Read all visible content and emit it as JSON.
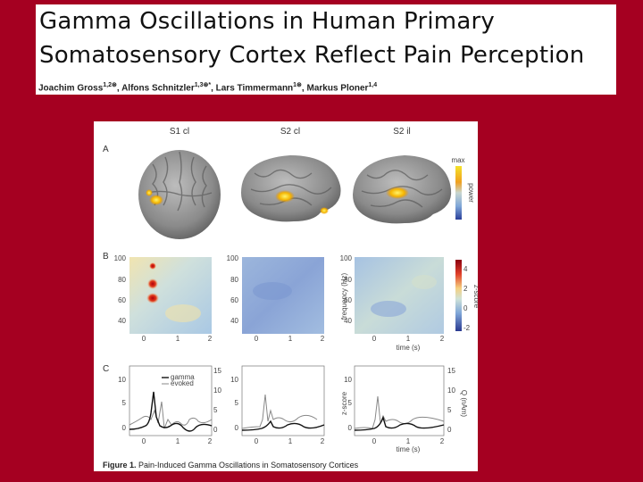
{
  "paper": {
    "title_line1": "Gamma Oscillations in Human Primary",
    "title_line2": "Somatosensory Cortex Reflect Pain Perception",
    "authors": [
      {
        "name": "Joachim Gross",
        "sup": "1,2⊛",
        "sep": ", "
      },
      {
        "name": "Alfons Schnitzler",
        "sup": "1,3⊛*",
        "sep": ", "
      },
      {
        "name": "Lars Timmermann",
        "sup": "1⊛",
        "sep": ", "
      },
      {
        "name": "Markus Ploner",
        "sup": "1,4",
        "sep": ""
      }
    ]
  },
  "figure": {
    "column_titles": [
      "S1 cl",
      "S2 cl",
      "S2 il"
    ],
    "panel_labels": [
      "A",
      "B",
      "C"
    ],
    "caption_label": "Figure 1.",
    "caption_text": " Pain-Induced Gamma Oscillations in Somatosensory Cortices",
    "colorbar_a": {
      "top": "max",
      "label": "power"
    },
    "colorbar_b": {
      "label": "z-score",
      "ticks": [
        "4",
        "2",
        "0",
        "-2"
      ]
    },
    "panel_b": {
      "yticks": [
        "100",
        "80",
        "60",
        "40"
      ],
      "xticks": [
        "0",
        "1",
        "2"
      ],
      "ylabel": "frequency (Hz)",
      "xlabel": "time (s)"
    },
    "panel_c": {
      "left_ticks": [
        "10",
        "5",
        "0"
      ],
      "right_ticks": [
        "15",
        "10",
        "5",
        "0"
      ],
      "ylabel": "z-score",
      "y2label": "Q (nAm)",
      "xlabel": "time (s)",
      "xticks": [
        "0",
        "1",
        "2"
      ],
      "legend": [
        "gamma",
        "evoked"
      ]
    },
    "colors": {
      "gamma": "#111111",
      "evoked": "#888888",
      "background": "#a50021"
    }
  }
}
